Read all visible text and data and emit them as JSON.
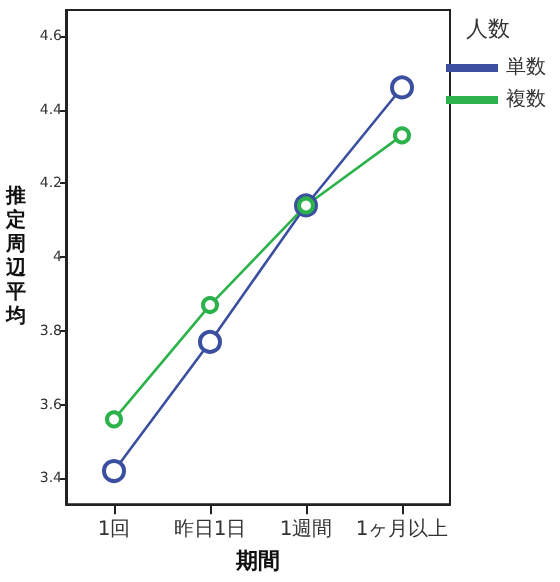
{
  "chart_data": {
    "type": "line",
    "xlabel": "期間",
    "ylabel": "推定周辺平均",
    "legend_title": "人数",
    "categories": [
      "1回",
      "昨日1日",
      "1週間",
      "1ヶ月以上"
    ],
    "series": [
      {
        "name": "単数",
        "color": "#3a4fa0",
        "values": [
          3.42,
          3.77,
          4.14,
          4.46
        ]
      },
      {
        "name": "複数",
        "color": "#2bb24a",
        "values": [
          3.56,
          3.87,
          4.14,
          4.33
        ]
      }
    ],
    "ylim": [
      3.33,
      4.67
    ],
    "yticks": [
      3.4,
      3.6,
      3.8,
      4,
      4.2,
      4.4,
      4.6
    ],
    "grid": false,
    "legend": "top right",
    "marker": "circle",
    "line_style": "solid"
  }
}
